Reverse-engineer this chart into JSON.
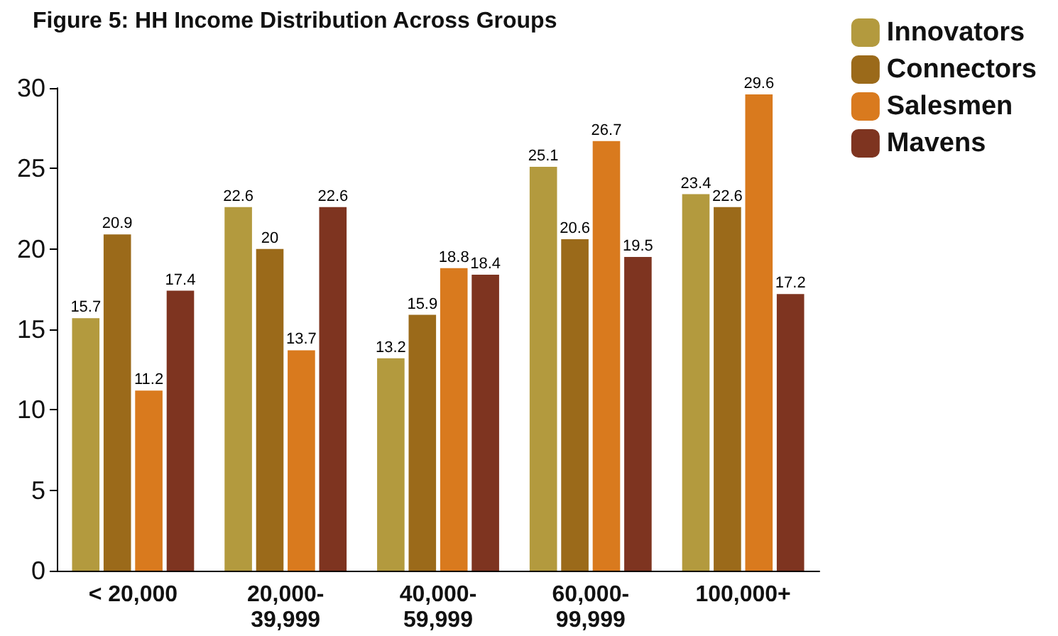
{
  "chart_data": {
    "type": "bar",
    "title": "Figure 5: HH Income Distribution Across Groups",
    "categories": [
      "< 20,000",
      "20,000-39,999",
      "40,000-59,999",
      "60,000-99,999",
      "100,000+"
    ],
    "series": [
      {
        "name": "Innovators",
        "color": "#b39a3e",
        "values": [
          15.7,
          22.6,
          13.2,
          25.1,
          23.4
        ]
      },
      {
        "name": "Connectors",
        "color": "#9b6a1a",
        "values": [
          20.9,
          20,
          15.9,
          20.6,
          22.6
        ]
      },
      {
        "name": "Salesmen",
        "color": "#d97a1e",
        "values": [
          11.2,
          13.7,
          18.8,
          26.7,
          29.6
        ]
      },
      {
        "name": "Mavens",
        "color": "#7e3420",
        "values": [
          17.4,
          22.6,
          18.4,
          19.5,
          17.2
        ]
      }
    ],
    "ylim": [
      0,
      30
    ],
    "yticks": [
      0,
      5,
      10,
      15,
      20,
      25,
      30
    ],
    "grid": false,
    "legend": "top right",
    "data_labels": true
  }
}
